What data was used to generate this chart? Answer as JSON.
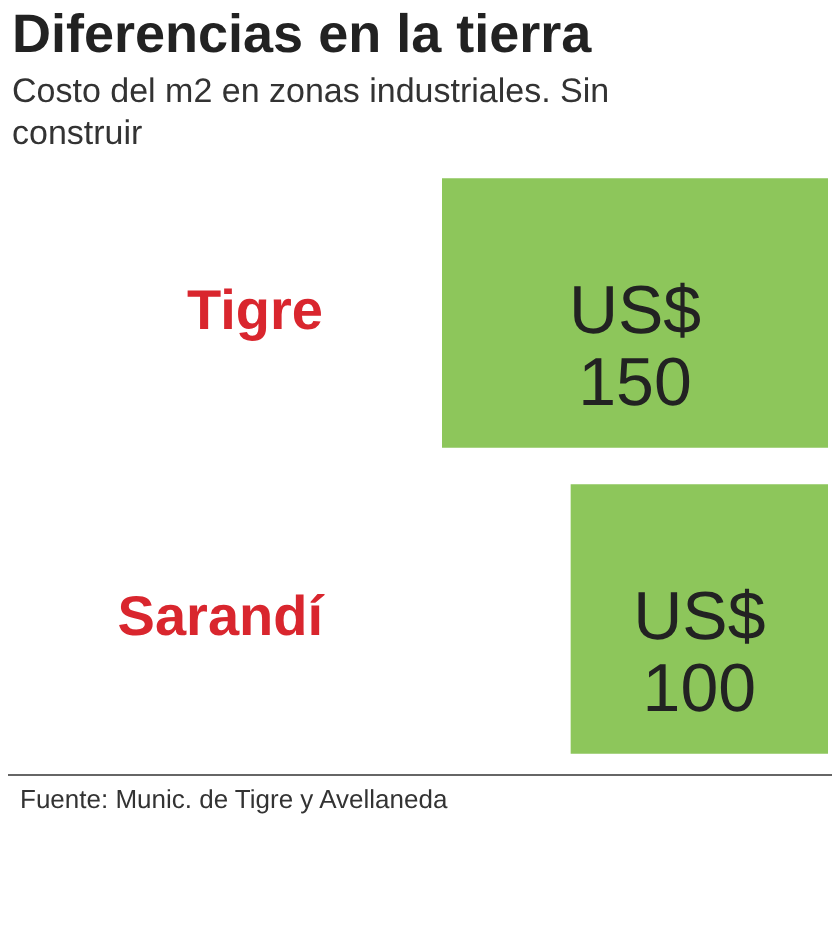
{
  "chart_data": {
    "type": "bar",
    "orientation": "horizontal",
    "title": "Diferencias en la tierra",
    "subtitle": "Costo del m2 en zonas industriales. Sin construir",
    "categories": [
      "Tigre",
      "Sarandí"
    ],
    "values": [
      150,
      100
    ],
    "color": "#8dc65b",
    "value_labels": [
      "US$ 150",
      "US$ 100"
    ],
    "annotations": [
      "Fuente: Munic. de Tigre y Avellaneda"
    ]
  }
}
